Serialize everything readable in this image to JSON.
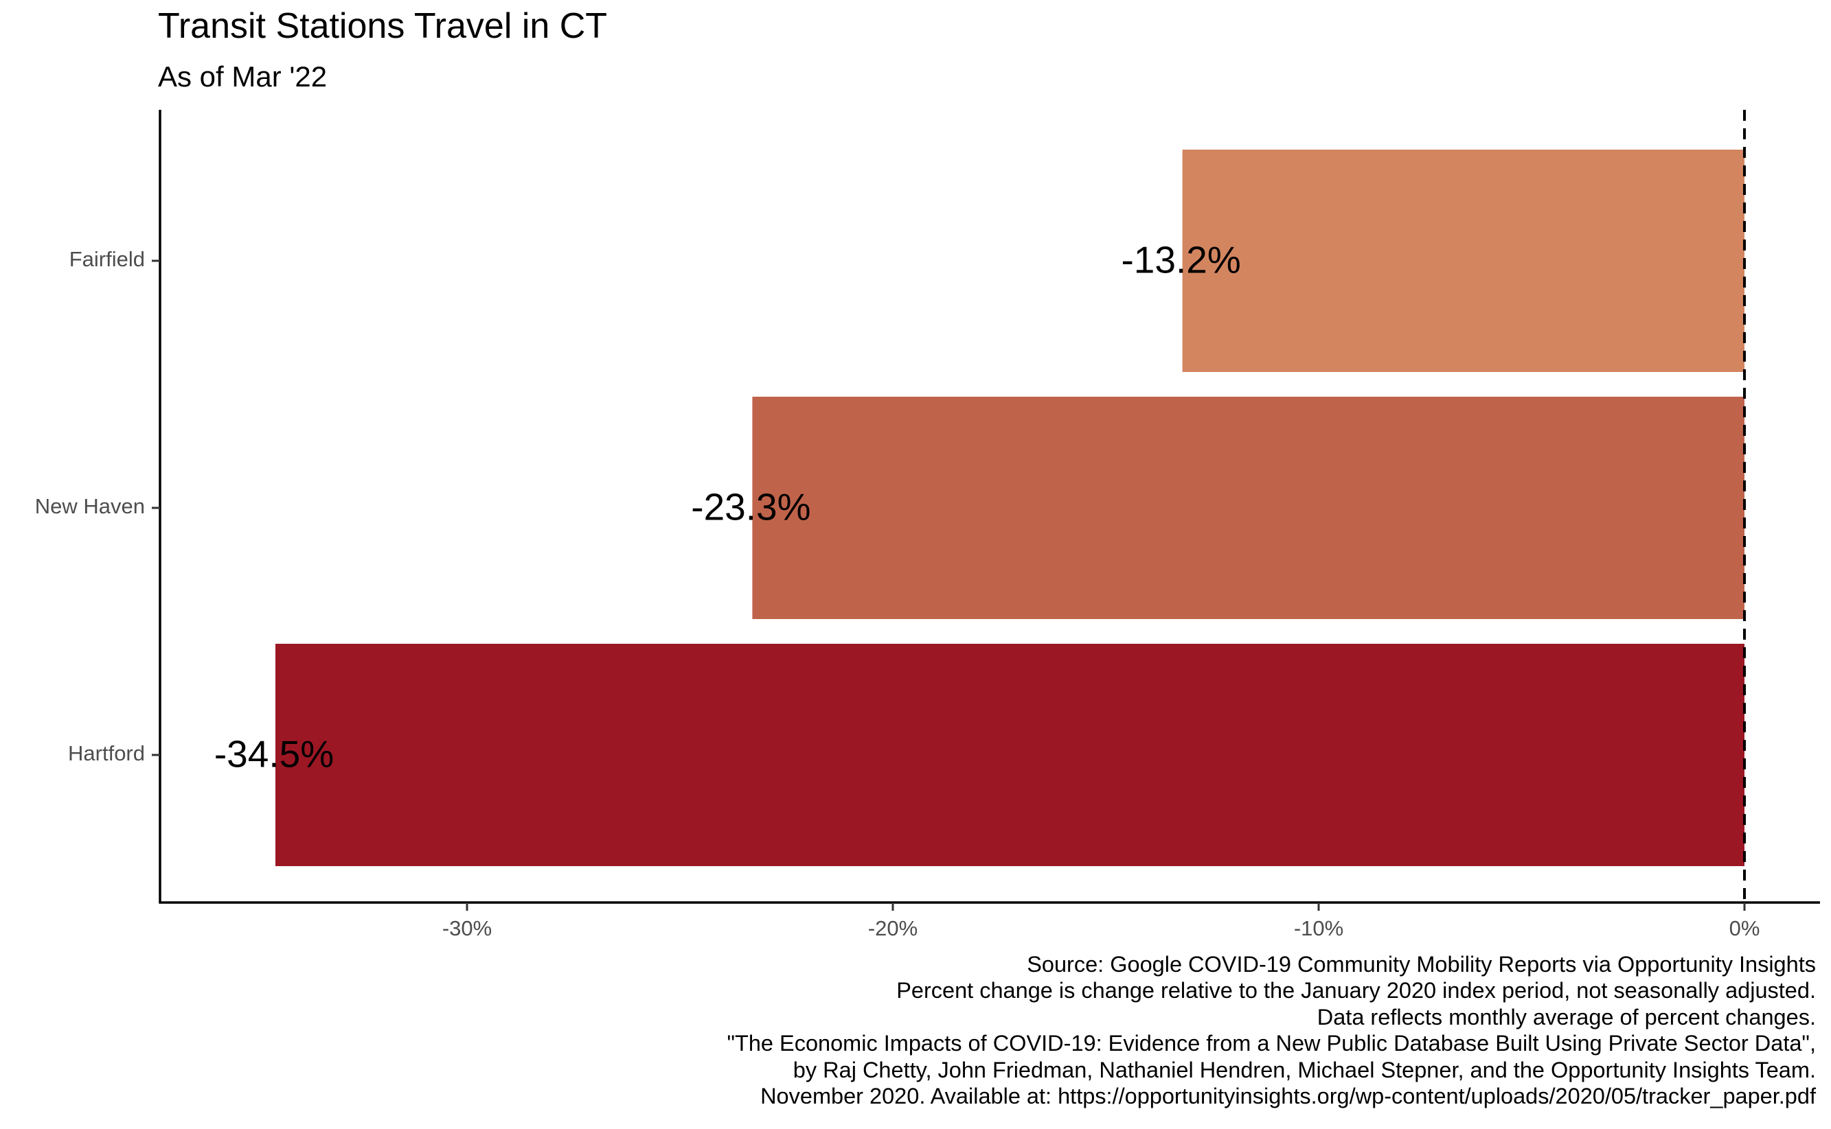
{
  "title": "Transit Stations Travel in CT",
  "subtitle": "As of Mar '22",
  "caption": [
    "Source: Google COVID-19 Community Mobility Reports via Opportunity Insights",
    "Percent change is change relative to the January 2020 index period, not seasonally adjusted.",
    "Data reflects monthly average of percent changes.",
    "\"The Economic Impacts of COVID-19: Evidence from a New Public Database Built Using Private Sector Data\",",
    "by Raj Chetty, John Friedman, Nathaniel Hendren, Michael Stepner, and the Opportunity Insights Team.",
    "November 2020. Available at: https://opportunityinsights.org/wp-content/uploads/2020/05/tracker_paper.pdf"
  ],
  "chart_data": {
    "type": "bar",
    "orientation": "horizontal",
    "title": "Transit Stations Travel in CT",
    "subtitle": "As of Mar '22",
    "categories": [
      "Fairfield",
      "New Haven",
      "Hartford"
    ],
    "values": [
      -13.2,
      -23.3,
      -34.5
    ],
    "data_labels": [
      "-13.2%",
      "-23.3%",
      "-34.5%"
    ],
    "bar_colors": [
      "#D38560",
      "#C0634B",
      "#9C1724"
    ],
    "x_ticks": [
      -30,
      -20,
      -10,
      0
    ],
    "x_tick_labels": [
      "-30%",
      "-20%",
      "-10%",
      "0%"
    ],
    "xlim": [
      -37.3,
      1.8
    ],
    "reference_line": {
      "value": 0,
      "style": "dashed"
    },
    "xlabel": "",
    "ylabel": "",
    "grid": false,
    "legend": "none"
  }
}
